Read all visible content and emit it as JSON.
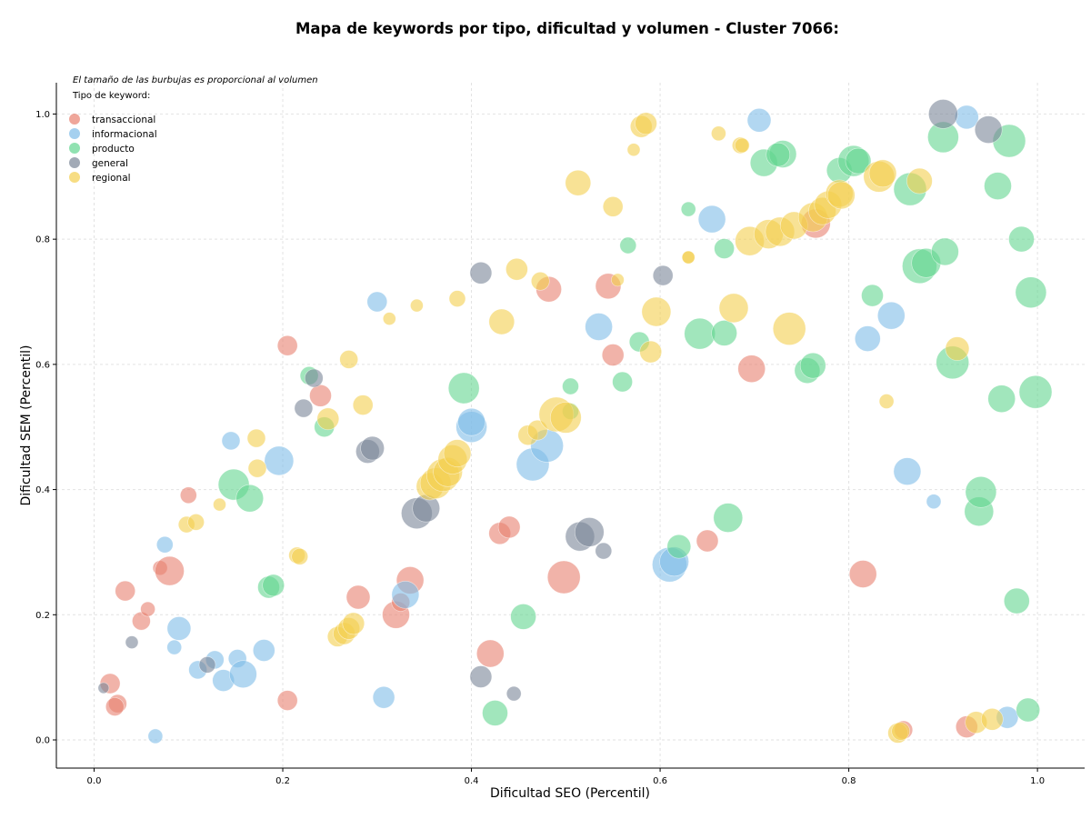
{
  "chart_data": {
    "type": "scatter",
    "title": "Mapa de keywords por tipo, dificultad y volumen - Cluster 7066:",
    "xlabel": "Dificultad SEO (Percentil)",
    "ylabel": "Dificultad SEM (Percentil)",
    "xlim": [
      -0.04,
      1.05
    ],
    "ylim": [
      -0.045,
      1.05
    ],
    "x_ticks": [
      "0.0",
      "0.2",
      "0.4",
      "0.6",
      "0.8",
      "1.0"
    ],
    "y_ticks": [
      "0.0",
      "0.2",
      "0.4",
      "0.6",
      "0.8",
      "1.0"
    ],
    "grid": true,
    "note": "El tamaño de las burbujas es proporcional al volumen",
    "legend_title": "Tipo de keyword:",
    "legend_position": "top-left",
    "series": [
      {
        "name": "transaccional",
        "color": "#e8806f",
        "points": [
          [
            0.017,
            0.09,
            11
          ],
          [
            0.025,
            0.058,
            10
          ],
          [
            0.022,
            0.053,
            10
          ],
          [
            0.033,
            0.238,
            11
          ],
          [
            0.05,
            0.19,
            10
          ],
          [
            0.057,
            0.209,
            8
          ],
          [
            0.07,
            0.275,
            8
          ],
          [
            0.08,
            0.27,
            16
          ],
          [
            0.1,
            0.391,
            9
          ],
          [
            0.205,
            0.63,
            11
          ],
          [
            0.205,
            0.063,
            11
          ],
          [
            0.24,
            0.55,
            12
          ],
          [
            0.28,
            0.228,
            13
          ],
          [
            0.32,
            0.2,
            15
          ],
          [
            0.325,
            0.22,
            10
          ],
          [
            0.335,
            0.255,
            15
          ],
          [
            0.42,
            0.138,
            15
          ],
          [
            0.43,
            0.33,
            12
          ],
          [
            0.44,
            0.34,
            12
          ],
          [
            0.482,
            0.72,
            14
          ],
          [
            0.498,
            0.26,
            18
          ],
          [
            0.55,
            0.615,
            12
          ],
          [
            0.545,
            0.725,
            14
          ],
          [
            0.65,
            0.318,
            12
          ],
          [
            0.697,
            0.593,
            15
          ],
          [
            0.765,
            0.825,
            16
          ],
          [
            0.815,
            0.265,
            15
          ],
          [
            0.858,
            0.016,
            10
          ],
          [
            0.925,
            0.021,
            12
          ]
        ]
      },
      {
        "name": "informacional",
        "color": "#7fbce8",
        "points": [
          [
            0.065,
            0.006,
            8
          ],
          [
            0.075,
            0.312,
            9
          ],
          [
            0.085,
            0.148,
            8
          ],
          [
            0.09,
            0.178,
            13
          ],
          [
            0.11,
            0.112,
            10
          ],
          [
            0.128,
            0.128,
            10
          ],
          [
            0.137,
            0.095,
            12
          ],
          [
            0.145,
            0.478,
            10
          ],
          [
            0.152,
            0.13,
            10
          ],
          [
            0.158,
            0.105,
            15
          ],
          [
            0.18,
            0.143,
            12
          ],
          [
            0.196,
            0.446,
            16
          ],
          [
            0.3,
            0.7,
            11
          ],
          [
            0.307,
            0.068,
            12
          ],
          [
            0.33,
            0.232,
            15
          ],
          [
            0.4,
            0.5,
            17
          ],
          [
            0.4,
            0.508,
            15
          ],
          [
            0.465,
            0.44,
            18
          ],
          [
            0.48,
            0.47,
            18
          ],
          [
            0.535,
            0.66,
            15
          ],
          [
            0.61,
            0.28,
            19
          ],
          [
            0.615,
            0.285,
            16
          ],
          [
            0.655,
            0.832,
            15
          ],
          [
            0.705,
            0.99,
            13
          ],
          [
            0.82,
            0.641,
            14
          ],
          [
            0.845,
            0.678,
            15
          ],
          [
            0.862,
            0.429,
            15
          ],
          [
            0.89,
            0.381,
            8
          ],
          [
            0.925,
            0.995,
            13
          ],
          [
            0.968,
            0.036,
            12
          ]
        ]
      },
      {
        "name": "producto",
        "color": "#62d690",
        "points": [
          [
            0.148,
            0.408,
            17
          ],
          [
            0.165,
            0.386,
            15
          ],
          [
            0.185,
            0.244,
            12
          ],
          [
            0.19,
            0.247,
            12
          ],
          [
            0.228,
            0.582,
            10
          ],
          [
            0.244,
            0.5,
            11
          ],
          [
            0.392,
            0.562,
            17
          ],
          [
            0.425,
            0.043,
            14
          ],
          [
            0.455,
            0.197,
            14
          ],
          [
            0.505,
            0.525,
            9
          ],
          [
            0.505,
            0.565,
            9
          ],
          [
            0.56,
            0.572,
            11
          ],
          [
            0.566,
            0.79,
            9
          ],
          [
            0.578,
            0.636,
            11
          ],
          [
            0.62,
            0.309,
            13
          ],
          [
            0.63,
            0.848,
            8
          ],
          [
            0.642,
            0.649,
            17
          ],
          [
            0.668,
            0.65,
            14
          ],
          [
            0.668,
            0.785,
            11
          ],
          [
            0.672,
            0.355,
            16
          ],
          [
            0.71,
            0.922,
            15
          ],
          [
            0.73,
            0.936,
            15
          ],
          [
            0.725,
            0.935,
            13
          ],
          [
            0.756,
            0.59,
            14
          ],
          [
            0.762,
            0.598,
            14
          ],
          [
            0.79,
            0.91,
            14
          ],
          [
            0.805,
            0.925,
            17
          ],
          [
            0.81,
            0.925,
            14
          ],
          [
            0.825,
            0.71,
            12
          ],
          [
            0.865,
            0.88,
            18
          ],
          [
            0.875,
            0.757,
            19
          ],
          [
            0.882,
            0.762,
            16
          ],
          [
            0.902,
            0.78,
            15
          ],
          [
            0.9,
            0.963,
            17
          ],
          [
            0.91,
            0.603,
            18
          ],
          [
            0.938,
            0.365,
            16
          ],
          [
            0.94,
            0.396,
            17
          ],
          [
            0.958,
            0.885,
            15
          ],
          [
            0.962,
            0.545,
            15
          ],
          [
            0.97,
            0.957,
            18
          ],
          [
            0.978,
            0.222,
            14
          ],
          [
            0.983,
            0.8,
            14
          ],
          [
            0.993,
            0.715,
            17
          ],
          [
            0.998,
            0.556,
            18
          ],
          [
            0.99,
            0.048,
            13
          ]
        ]
      },
      {
        "name": "general",
        "color": "#7a8697",
        "points": [
          [
            0.01,
            0.083,
            6
          ],
          [
            0.04,
            0.156,
            7
          ],
          [
            0.12,
            0.12,
            9
          ],
          [
            0.222,
            0.53,
            10
          ],
          [
            0.233,
            0.578,
            10
          ],
          [
            0.29,
            0.461,
            13
          ],
          [
            0.295,
            0.466,
            13
          ],
          [
            0.342,
            0.362,
            17
          ],
          [
            0.352,
            0.37,
            15
          ],
          [
            0.41,
            0.101,
            12
          ],
          [
            0.41,
            0.746,
            12
          ],
          [
            0.445,
            0.074,
            8
          ],
          [
            0.515,
            0.325,
            16
          ],
          [
            0.525,
            0.332,
            16
          ],
          [
            0.54,
            0.302,
            9
          ],
          [
            0.603,
            0.742,
            11
          ],
          [
            0.9,
            1.0,
            16
          ],
          [
            0.948,
            0.975,
            15
          ]
        ]
      },
      {
        "name": "regional",
        "color": "#f4cf4e",
        "points": [
          [
            0.098,
            0.344,
            9
          ],
          [
            0.108,
            0.348,
            9
          ],
          [
            0.133,
            0.376,
            7
          ],
          [
            0.172,
            0.482,
            10
          ],
          [
            0.173,
            0.434,
            10
          ],
          [
            0.215,
            0.295,
            9
          ],
          [
            0.218,
            0.293,
            9
          ],
          [
            0.248,
            0.513,
            12
          ],
          [
            0.258,
            0.165,
            11
          ],
          [
            0.265,
            0.17,
            12
          ],
          [
            0.27,
            0.178,
            12
          ],
          [
            0.27,
            0.608,
            10
          ],
          [
            0.275,
            0.186,
            12
          ],
          [
            0.285,
            0.535,
            11
          ],
          [
            0.313,
            0.673,
            7
          ],
          [
            0.342,
            0.694,
            7
          ],
          [
            0.356,
            0.405,
            15
          ],
          [
            0.362,
            0.41,
            17
          ],
          [
            0.37,
            0.423,
            18
          ],
          [
            0.375,
            0.428,
            16
          ],
          [
            0.38,
            0.448,
            16
          ],
          [
            0.385,
            0.458,
            15
          ],
          [
            0.385,
            0.705,
            9
          ],
          [
            0.432,
            0.668,
            14
          ],
          [
            0.448,
            0.752,
            12
          ],
          [
            0.46,
            0.487,
            11
          ],
          [
            0.47,
            0.495,
            11
          ],
          [
            0.473,
            0.733,
            10
          ],
          [
            0.49,
            0.52,
            19
          ],
          [
            0.5,
            0.515,
            17
          ],
          [
            0.513,
            0.89,
            14
          ],
          [
            0.55,
            0.852,
            11
          ],
          [
            0.555,
            0.735,
            7
          ],
          [
            0.572,
            0.943,
            7
          ],
          [
            0.58,
            0.98,
            12
          ],
          [
            0.585,
            0.985,
            12
          ],
          [
            0.59,
            0.62,
            12
          ],
          [
            0.596,
            0.684,
            16
          ],
          [
            0.63,
            0.771,
            7
          ],
          [
            0.63,
            0.771,
            7
          ],
          [
            0.662,
            0.969,
            8
          ],
          [
            0.685,
            0.95,
            9
          ],
          [
            0.687,
            0.95,
            8
          ],
          [
            0.678,
            0.69,
            16
          ],
          [
            0.695,
            0.797,
            16
          ],
          [
            0.715,
            0.808,
            16
          ],
          [
            0.727,
            0.812,
            16
          ],
          [
            0.737,
            0.657,
            18
          ],
          [
            0.742,
            0.822,
            15
          ],
          [
            0.762,
            0.835,
            16
          ],
          [
            0.772,
            0.845,
            15
          ],
          [
            0.778,
            0.855,
            15
          ],
          [
            0.79,
            0.873,
            15
          ],
          [
            0.792,
            0.87,
            15
          ],
          [
            0.832,
            0.9,
            17
          ],
          [
            0.836,
            0.905,
            15
          ],
          [
            0.84,
            0.541,
            8
          ],
          [
            0.852,
            0.011,
            11
          ],
          [
            0.855,
            0.014,
            10
          ],
          [
            0.875,
            0.893,
            14
          ],
          [
            0.915,
            0.625,
            13
          ],
          [
            0.935,
            0.028,
            12
          ],
          [
            0.952,
            0.033,
            12
          ]
        ]
      }
    ]
  }
}
